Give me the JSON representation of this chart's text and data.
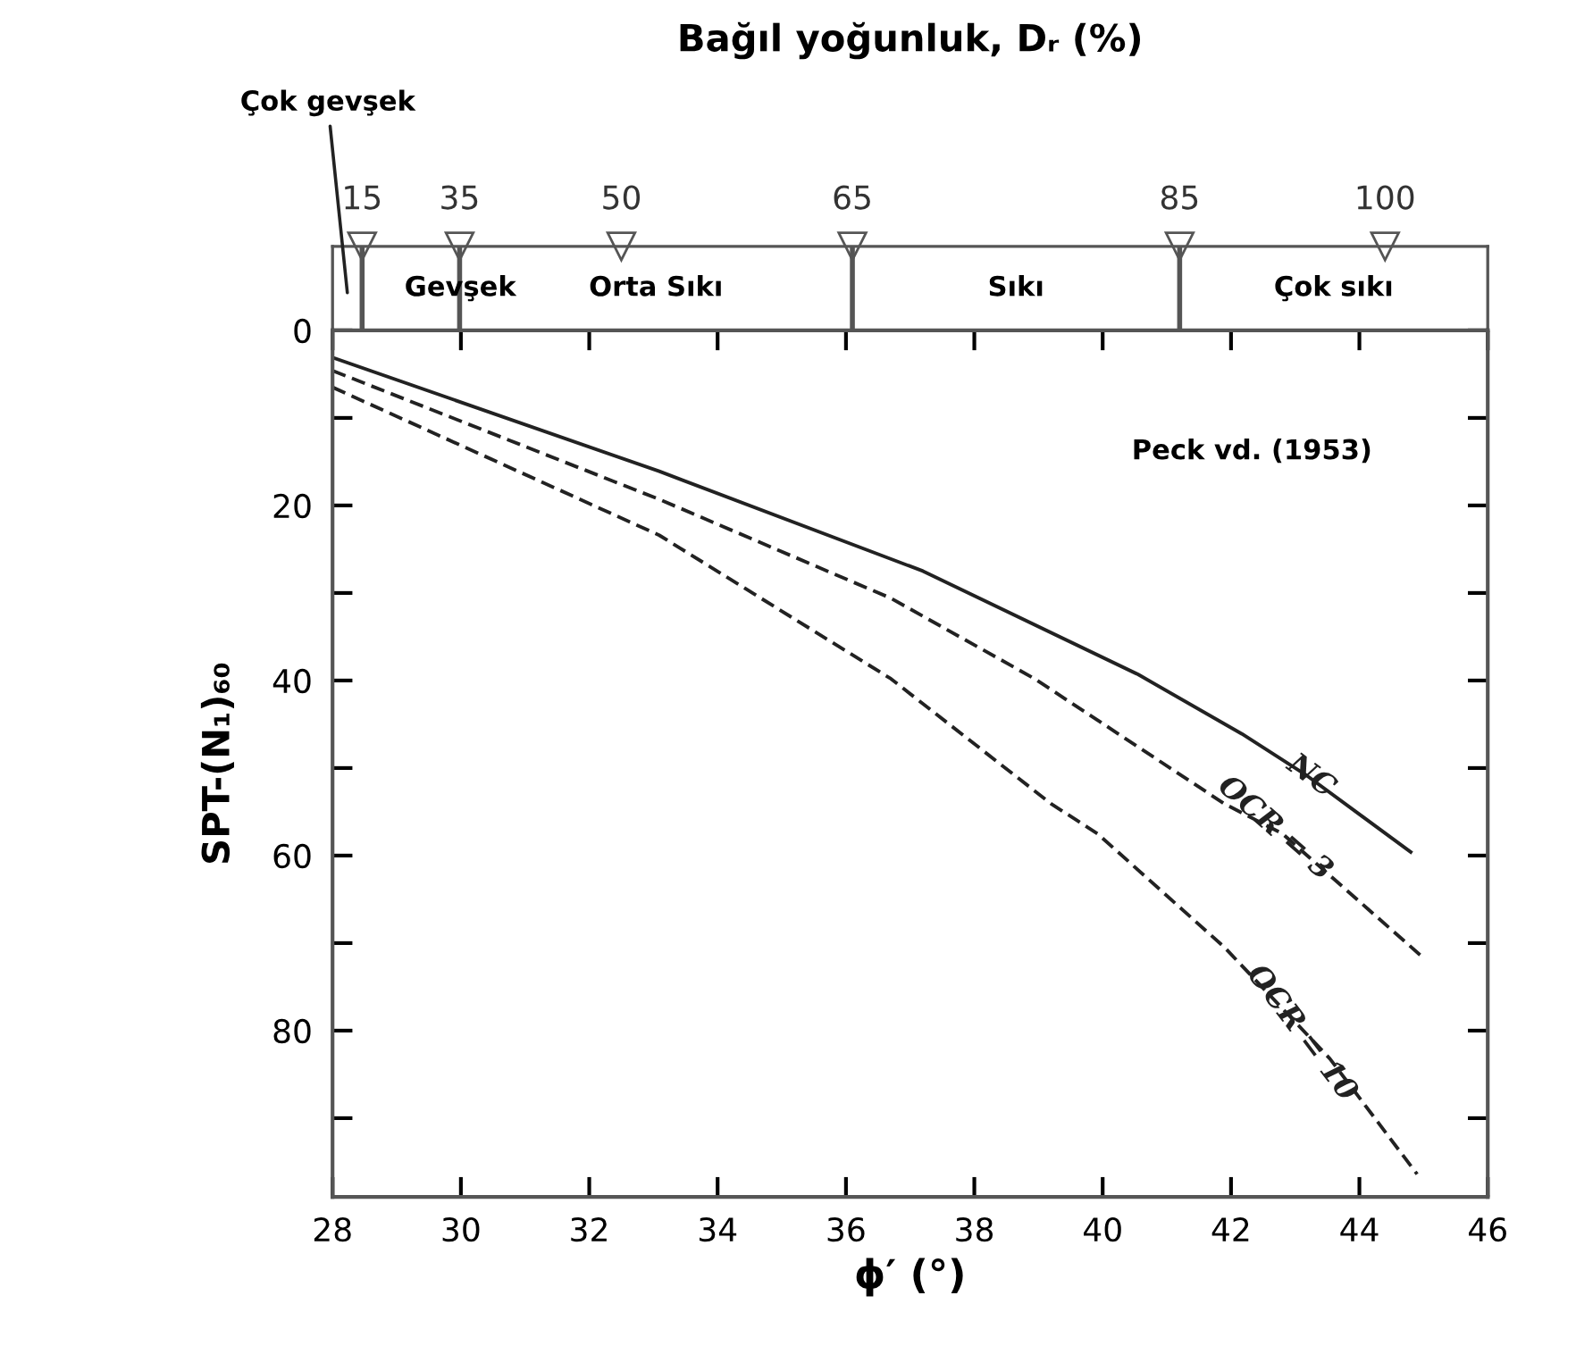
{
  "chart_data": [
    {
      "type": "other",
      "title": "Bağıl yoğunluk, Dᵣ (%)",
      "categories": [
        "Çok gevşek",
        "Gevşek",
        "Orta Sıkı",
        "Sıkı",
        "Çok sıkı"
      ],
      "annotations": [
        "15",
        "35",
        "50",
        "65",
        "85",
        "100"
      ]
    },
    {
      "type": "line",
      "xlabel": "ϕ′ (°)",
      "ylabel": "SPT-(N₁)₆₀",
      "xlim": [
        28,
        46
      ],
      "xticks": [
        28,
        30,
        32,
        34,
        36,
        38,
        40,
        42,
        44,
        46
      ],
      "ylim": [
        99,
        0
      ],
      "yticks": [
        0,
        {
          "value": 10,
          "label": null
        },
        20,
        {
          "value": 30,
          "label": null
        },
        40,
        {
          "value": 50,
          "label": null
        },
        60,
        {
          "value": 70,
          "label": null
        },
        80,
        {
          "value": 90,
          "label": null
        }
      ],
      "series": [
        {
          "name": "NC",
          "color": "#222222",
          "line_style": "solid",
          "x": [
            28,
            33.09,
            37.2,
            40.55,
            42.17,
            43.15,
            44.8
          ],
          "values": [
            3.1,
            16.1,
            27.5,
            39.3,
            46.1,
            50.7,
            59.6
          ]
        },
        {
          "name": "OCR = 3",
          "color": "#222222",
          "line_style": "dashed",
          "x": [
            28,
            33.09,
            36.7,
            38.94,
            41.9,
            42.8,
            45.0
          ],
          "values": [
            4.6,
            19.3,
            30.6,
            39.8,
            54.1,
            57.5,
            71.7
          ]
        },
        {
          "name": "OCR = 10",
          "color": "#222222",
          "line_style": "dashed",
          "x": [
            28,
            33.09,
            36.7,
            39.2,
            39.92,
            41.9,
            43.54,
            44.9
          ],
          "values": [
            6.5,
            23.4,
            39.8,
            54.1,
            57.5,
            70.5,
            83.2,
            96.4
          ]
        }
      ],
      "annotations": [
        "Peck vd. (1953)"
      ],
      "grid": false,
      "legend": false,
      "marker": "none"
    }
  ]
}
